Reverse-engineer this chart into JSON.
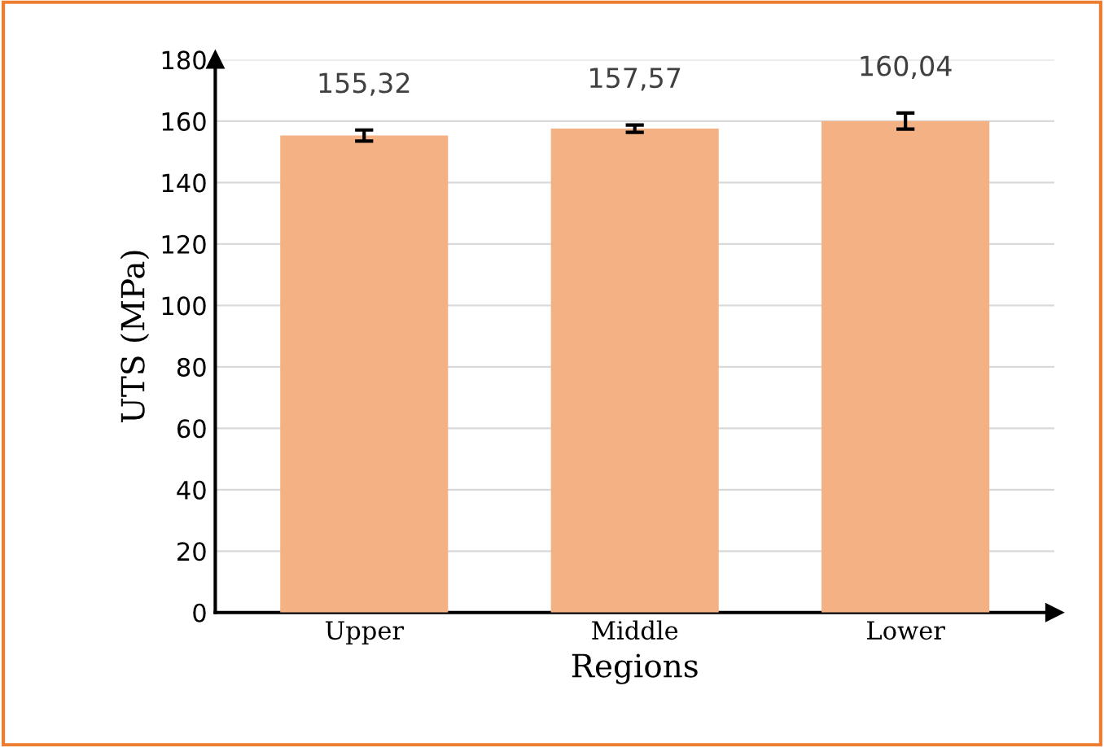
{
  "chart_data": {
    "type": "bar",
    "xlabel": "Regions",
    "ylabel": "UTS (MPa)",
    "categories": [
      "Upper",
      "Middle",
      "Lower"
    ],
    "values": [
      155.32,
      157.57,
      160.04
    ],
    "value_labels": [
      "155,32",
      "157,57",
      "160,04"
    ],
    "errors": [
      1.8,
      1.2,
      2.6
    ],
    "color": "#f4b183",
    "ylim": [
      0,
      180
    ],
    "yticks": [
      0,
      20,
      40,
      60,
      80,
      100,
      120,
      140,
      160,
      180
    ],
    "grid": "y"
  }
}
